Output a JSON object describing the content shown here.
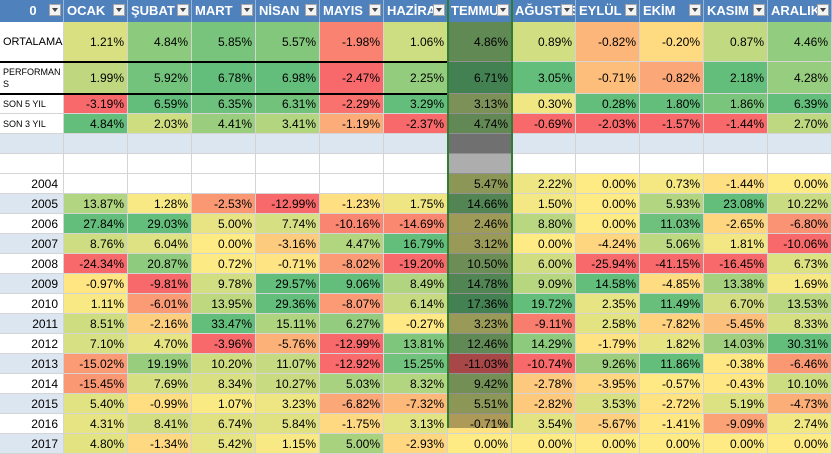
{
  "sheet": {
    "corner": "0",
    "columns": [
      "OCAK",
      "ŞUBAT",
      "MART",
      "NİSAN",
      "MAYIS",
      "HAZİRAN",
      "TEMMUZ",
      "AĞUSTOS",
      "EYLÜL",
      "EKİM",
      "KASIM",
      "ARALIK"
    ],
    "summary_rows": [
      {
        "label": "ORTALAMA",
        "values": [
          "1.21%",
          "4.84%",
          "5.85%",
          "5.57%",
          "-1.98%",
          "1.06%",
          "4.86%",
          "0.89%",
          "-0.82%",
          "-0.20%",
          "0.87%",
          "4.46%"
        ]
      },
      {
        "label": "PERFORMANS",
        "values": [
          "1.99%",
          "5.92%",
          "6.78%",
          "6.98%",
          "-2.47%",
          "2.25%",
          "6.71%",
          "3.05%",
          "-0.71%",
          "-0.82%",
          "2.18%",
          "4.28%"
        ]
      },
      {
        "label": "SON 5 YIL",
        "values": [
          "-3.19%",
          "6.59%",
          "6.35%",
          "6.31%",
          "-2.29%",
          "3.29%",
          "3.13%",
          "0.30%",
          "0.28%",
          "1.80%",
          "1.86%",
          "6.39%"
        ]
      },
      {
        "label": "SON 3 YIL",
        "values": [
          "4.84%",
          "2.03%",
          "4.41%",
          "3.41%",
          "-1.19%",
          "-2.37%",
          "4.74%",
          "-0.69%",
          "-2.03%",
          "-1.57%",
          "-1.44%",
          "2.70%"
        ]
      }
    ],
    "year_rows": [
      {
        "label": "2004",
        "values": [
          "",
          "",
          "",
          "",
          "",
          "",
          "5.47%",
          "2.22%",
          "0.00%",
          "0.73%",
          "-1.44%",
          "0.00%"
        ]
      },
      {
        "label": "2005",
        "values": [
          "13.87%",
          "1.28%",
          "-2.53%",
          "-12.99%",
          "-1.23%",
          "1.75%",
          "14.66%",
          "1.50%",
          "0.00%",
          "5.93%",
          "23.08%",
          "10.22%"
        ]
      },
      {
        "label": "2006",
        "values": [
          "27.84%",
          "29.03%",
          "5.00%",
          "7.74%",
          "-10.16%",
          "-14.69%",
          "2.46%",
          "8.80%",
          "0.00%",
          "11.03%",
          "-2.65%",
          "-6.80%"
        ]
      },
      {
        "label": "2007",
        "values": [
          "8.76%",
          "6.04%",
          "0.00%",
          "-3.16%",
          "4.47%",
          "16.79%",
          "3.12%",
          "0.00%",
          "-4.24%",
          "5.06%",
          "1.81%",
          "-10.06%"
        ]
      },
      {
        "label": "2008",
        "values": [
          "-24.34%",
          "20.87%",
          "0.72%",
          "-0.71%",
          "-8.02%",
          "-19.20%",
          "10.50%",
          "6.00%",
          "-25.94%",
          "-41.15%",
          "-16.45%",
          "6.73%"
        ]
      },
      {
        "label": "2009",
        "values": [
          "-0.97%",
          "-9.81%",
          "9.78%",
          "29.57%",
          "9.06%",
          "8.49%",
          "14.78%",
          "9.09%",
          "14.58%",
          "-4.85%",
          "13.38%",
          "1.69%"
        ]
      },
      {
        "label": "2010",
        "values": [
          "1.11%",
          "-6.01%",
          "13.95%",
          "29.36%",
          "-8.07%",
          "6.14%",
          "17.36%",
          "19.72%",
          "2.35%",
          "11.49%",
          "6.70%",
          "13.53%"
        ]
      },
      {
        "label": "2011",
        "values": [
          "8.51%",
          "-2.16%",
          "33.47%",
          "15.11%",
          "6.27%",
          "-0.27%",
          "3.23%",
          "-9.11%",
          "2.58%",
          "-7.82%",
          "-5.45%",
          "8.33%"
        ]
      },
      {
        "label": "2012",
        "values": [
          "7.10%",
          "4.70%",
          "-3.96%",
          "-5.76%",
          "-12.99%",
          "13.81%",
          "12.46%",
          "14.29%",
          "-1.79%",
          "1.82%",
          "14.03%",
          "30.31%"
        ]
      },
      {
        "label": "2013",
        "values": [
          "-15.02%",
          "19.19%",
          "10.20%",
          "11.07%",
          "-12.92%",
          "15.25%",
          "-11.03%",
          "-10.74%",
          "9.26%",
          "11.86%",
          "-0.38%",
          "-6.46%"
        ]
      },
      {
        "label": "2014",
        "values": [
          "-15.45%",
          "7.69%",
          "8.34%",
          "10.27%",
          "5.03%",
          "8.32%",
          "9.42%",
          "-2.78%",
          "-3.95%",
          "-0.57%",
          "-0.43%",
          "10.10%"
        ]
      },
      {
        "label": "2015",
        "values": [
          "5.40%",
          "-0.99%",
          "1.07%",
          "3.23%",
          "-6.82%",
          "-7.32%",
          "5.51%",
          "-2.82%",
          "3.53%",
          "-2.72%",
          "5.19%",
          "-4.73%"
        ]
      },
      {
        "label": "2016",
        "values": [
          "4.31%",
          "8.41%",
          "6.74%",
          "5.84%",
          "-1.75%",
          "3.13%",
          "-0.71%",
          "3.54%",
          "-5.67%",
          "-1.41%",
          "-9.09%",
          "2.74%"
        ]
      },
      {
        "label": "2017",
        "values": [
          "4.80%",
          "-1.34%",
          "5.42%",
          "1.15%",
          "5.00%",
          "-2.93%",
          "0.00%",
          "0.00%",
          "0.00%",
          "0.00%",
          "0.00%",
          "0.00%"
        ]
      }
    ]
  }
}
